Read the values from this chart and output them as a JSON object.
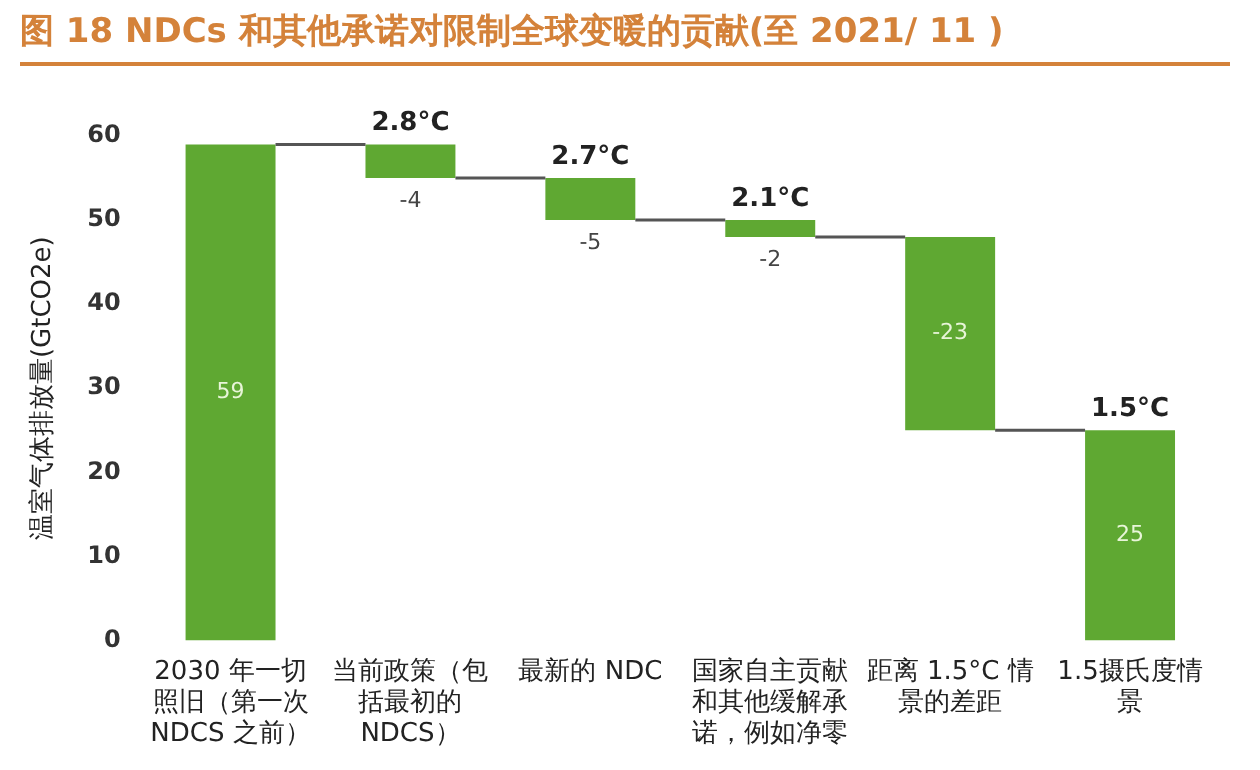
{
  "chart_data": {
    "type": "bar",
    "title": "图 18 NDCs 和其他承诺对限制全球变暖的贡献(至 2021/ 11 )",
    "ylabel": "温室气体排放量(GtCO2e)",
    "categories": [
      "2030 年一切照旧（第一次 NDCS 之前）",
      "当前政策（包括最初的 NDCS）",
      "最新的 NDC",
      "国家自主贡献和其他缓解承诺，例如净零",
      "距离 1.5°C 情景的差距",
      "1.5摄氏度情景"
    ],
    "values": [
      59,
      -4,
      -5,
      -2,
      -23,
      25
    ],
    "base": [
      0,
      59,
      55,
      50,
      48,
      0
    ],
    "value_labels": [
      "59",
      "-4",
      "-5",
      "-2",
      "-23",
      "25"
    ],
    "color": "#5fa832",
    "ylim": [
      0,
      60
    ],
    "yticks": [
      0,
      10,
      20,
      30,
      40,
      50,
      60
    ],
    "grid": false,
    "annotations": [
      {
        "text": "2.8°C",
        "x": "当前政策（包括最初的 NDCS）",
        "y": 59
      },
      {
        "text": "2.7°C",
        "x": "最新的 NDC",
        "y": 55
      },
      {
        "text": "2.1°C",
        "x": "国家自主贡献和其他缓解承诺，例如净零",
        "y": 50
      },
      {
        "text": "1.5°C",
        "x": "1.5摄氏度情景",
        "y": 25
      }
    ]
  }
}
